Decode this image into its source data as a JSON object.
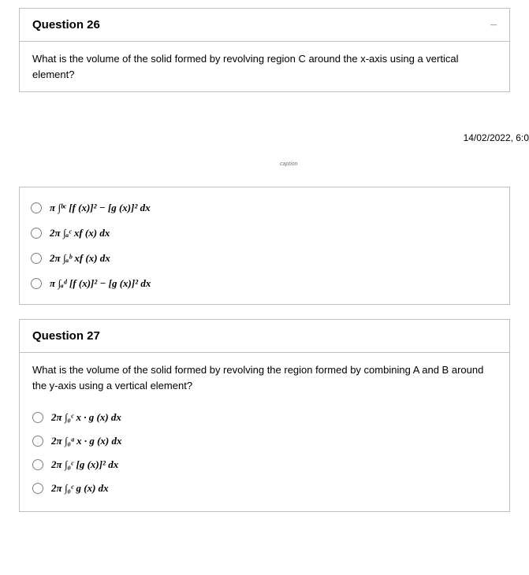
{
  "q26": {
    "title": "Question 26",
    "header_right": "—",
    "prompt": "What is the volume of the solid formed by revolving region C around the x-axis using a vertical element?",
    "options": [
      "π ∫ᵇᶜ [f (x)]² − [g (x)]² dx",
      "2π ∫ₐᶜ xf (x) dx",
      "2π ∫ₐᵇ xf (x) dx",
      "π ∫ₐᵈ [f (x)]² − [g (x)]² dx"
    ]
  },
  "timestamp": "14/02/2022, 6:0",
  "tiny_caption": "caption",
  "q27": {
    "title": "Question 27",
    "prompt": "What is the volume of the solid formed by revolving the region formed by combining A and B around the y-axis using a vertical element?",
    "options": [
      "2π ∫₀ᶜ x · g (x) dx",
      "2π ∫₀ᵃ x · g (x) dx",
      "2π ∫₀ᶜ [g (x)]² dx",
      "2π ∫₀ᶜ g (x) dx"
    ]
  }
}
